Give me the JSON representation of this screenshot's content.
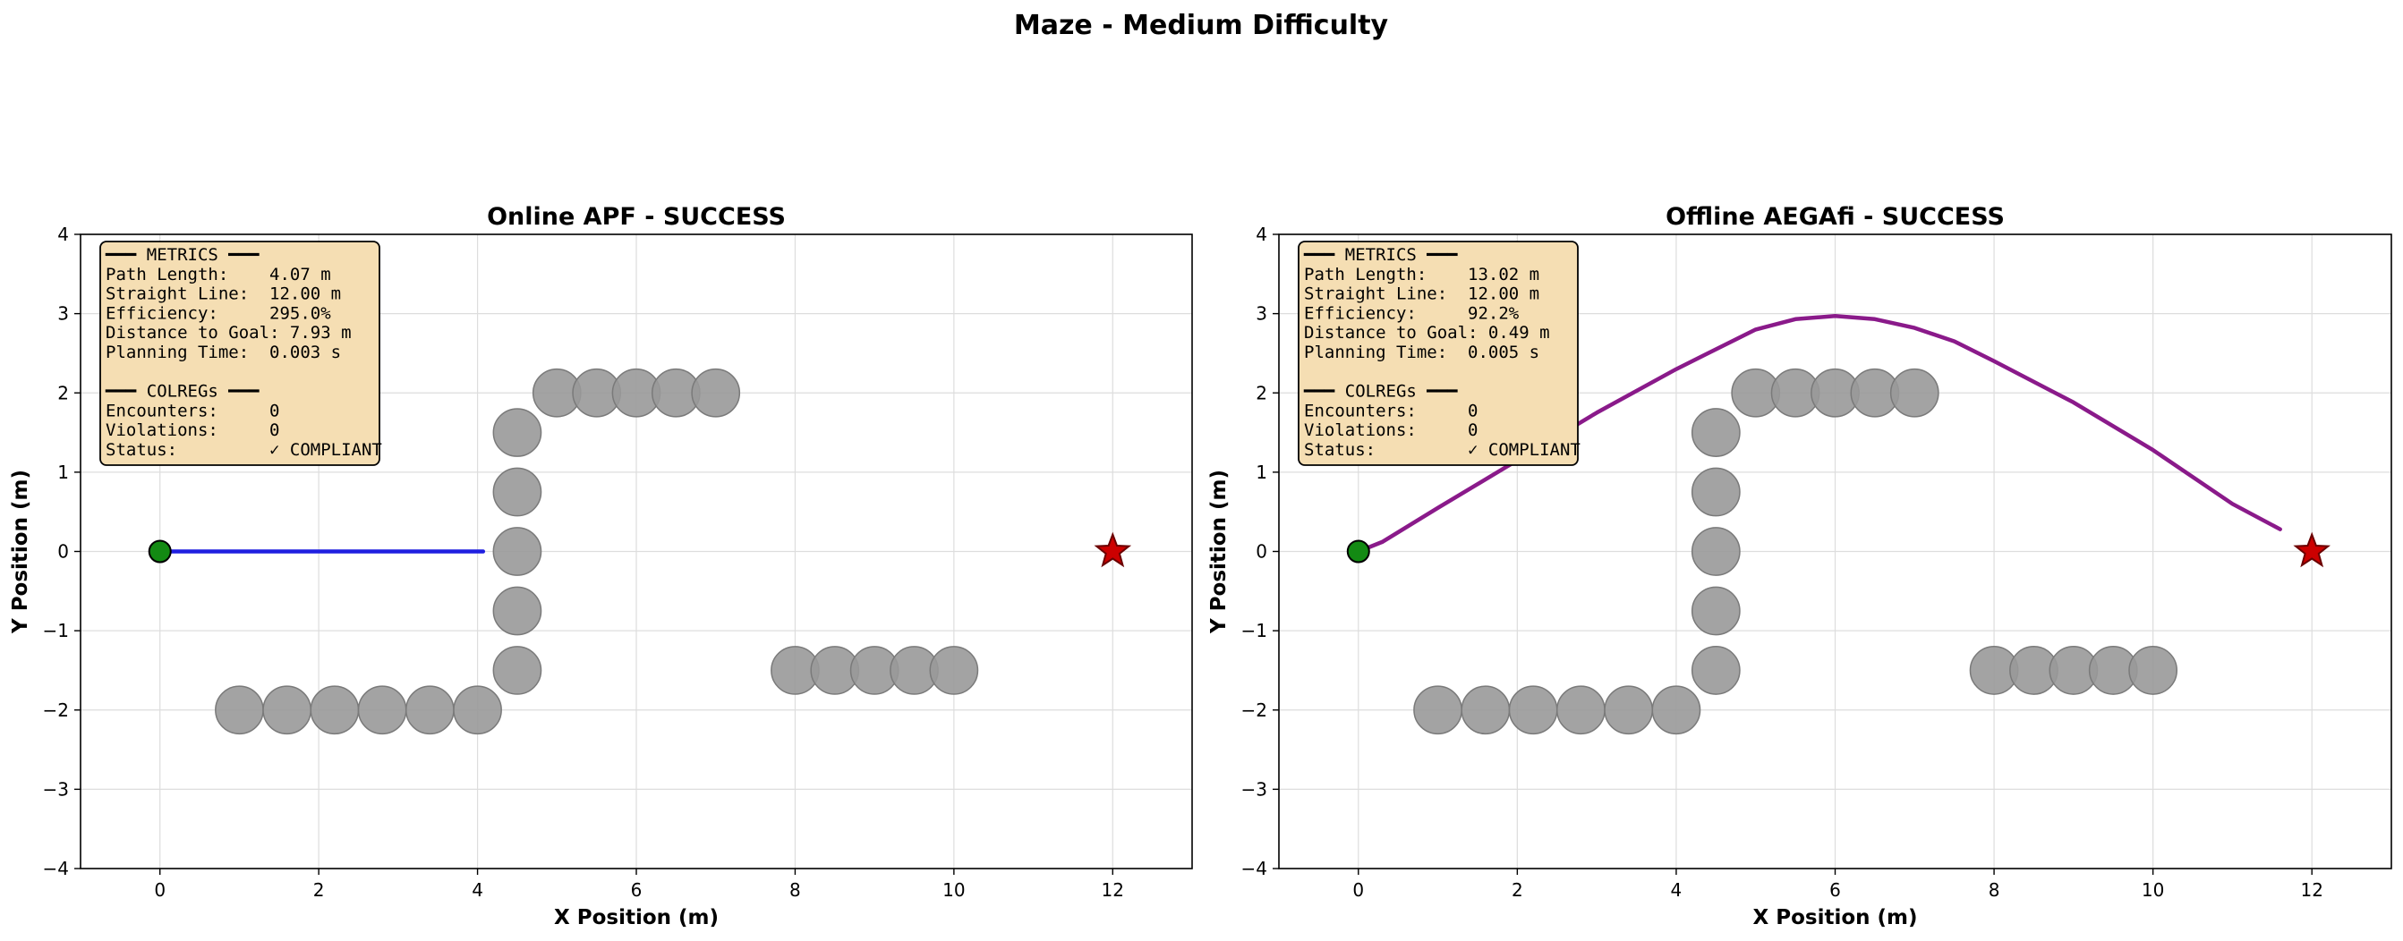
{
  "suptitle": "Maze - Medium Difficulty",
  "colors": {
    "apf_path": "#1f1fe0",
    "aegafi_path": "#8a1a8a",
    "obstacle": "#999999",
    "start": "#138a13",
    "goal": "#cc0000",
    "textbox": "#f5deb3"
  },
  "chart_data": [
    {
      "type": "scatter",
      "title": "Online APF - SUCCESS",
      "xlabel": "X Position (m)",
      "ylabel": "Y Position (m)",
      "xlim": [
        -1,
        13
      ],
      "ylim": [
        -4,
        4
      ],
      "xticks": [
        0,
        2,
        4,
        6,
        8,
        10,
        12
      ],
      "yticks": [
        -4,
        -3,
        -2,
        -1,
        0,
        1,
        2,
        3,
        4
      ],
      "grid": true,
      "obstacles": [
        {
          "x": 1.0,
          "y": -2.0
        },
        {
          "x": 1.6,
          "y": -2.0
        },
        {
          "x": 2.2,
          "y": -2.0
        },
        {
          "x": 2.8,
          "y": -2.0
        },
        {
          "x": 3.4,
          "y": -2.0
        },
        {
          "x": 4.0,
          "y": -2.0
        },
        {
          "x": 4.5,
          "y": -1.5
        },
        {
          "x": 4.5,
          "y": -0.75
        },
        {
          "x": 4.5,
          "y": 0.0
        },
        {
          "x": 4.5,
          "y": 0.75
        },
        {
          "x": 4.5,
          "y": 1.5
        },
        {
          "x": 5.0,
          "y": 2.0
        },
        {
          "x": 5.5,
          "y": 2.0
        },
        {
          "x": 6.0,
          "y": 2.0
        },
        {
          "x": 6.5,
          "y": 2.0
        },
        {
          "x": 7.0,
          "y": 2.0
        },
        {
          "x": 8.0,
          "y": -1.5
        },
        {
          "x": 8.5,
          "y": -1.5
        },
        {
          "x": 9.0,
          "y": -1.5
        },
        {
          "x": 9.5,
          "y": -1.5
        },
        {
          "x": 10.0,
          "y": -1.5
        }
      ],
      "obstacle_radius": 0.3,
      "start": {
        "x": 0,
        "y": 0
      },
      "goal": {
        "x": 12,
        "y": 0
      },
      "path": {
        "color": "#1f1fe0",
        "x": [
          0,
          1,
          2,
          3,
          4.07
        ],
        "y": [
          0,
          0,
          0,
          0,
          0
        ]
      },
      "metrics_lines": [
        "━━━ METRICS ━━━",
        "Path Length:    4.07 m",
        "Straight Line:  12.00 m",
        "Efficiency:     295.0%",
        "Distance to Goal: 7.93 m",
        "Planning Time:  0.003 s",
        "",
        "━━━ COLREGs ━━━",
        "Encounters:     0",
        "Violations:     0",
        "Status:         ✓ COMPLIANT"
      ]
    },
    {
      "type": "scatter",
      "title": "Offline AEGAfi - SUCCESS",
      "xlabel": "X Position (m)",
      "ylabel": "Y Position (m)",
      "xlim": [
        -1,
        13
      ],
      "ylim": [
        -4,
        4
      ],
      "xticks": [
        0,
        2,
        4,
        6,
        8,
        10,
        12
      ],
      "yticks": [
        -4,
        -3,
        -2,
        -1,
        0,
        1,
        2,
        3,
        4
      ],
      "grid": true,
      "obstacles": [
        {
          "x": 1.0,
          "y": -2.0
        },
        {
          "x": 1.6,
          "y": -2.0
        },
        {
          "x": 2.2,
          "y": -2.0
        },
        {
          "x": 2.8,
          "y": -2.0
        },
        {
          "x": 3.4,
          "y": -2.0
        },
        {
          "x": 4.0,
          "y": -2.0
        },
        {
          "x": 4.5,
          "y": -1.5
        },
        {
          "x": 4.5,
          "y": -0.75
        },
        {
          "x": 4.5,
          "y": 0.0
        },
        {
          "x": 4.5,
          "y": 0.75
        },
        {
          "x": 4.5,
          "y": 1.5
        },
        {
          "x": 5.0,
          "y": 2.0
        },
        {
          "x": 5.5,
          "y": 2.0
        },
        {
          "x": 6.0,
          "y": 2.0
        },
        {
          "x": 6.5,
          "y": 2.0
        },
        {
          "x": 7.0,
          "y": 2.0
        },
        {
          "x": 8.0,
          "y": -1.5
        },
        {
          "x": 8.5,
          "y": -1.5
        },
        {
          "x": 9.0,
          "y": -1.5
        },
        {
          "x": 9.5,
          "y": -1.5
        },
        {
          "x": 10.0,
          "y": -1.5
        }
      ],
      "obstacle_radius": 0.3,
      "start": {
        "x": 0,
        "y": 0
      },
      "goal": {
        "x": 12,
        "y": 0
      },
      "path": {
        "color": "#8a1a8a",
        "x": [
          0,
          0.3,
          1.0,
          2.0,
          3.0,
          4.0,
          4.5,
          5.0,
          5.5,
          6.0,
          6.5,
          7.0,
          7.5,
          8.0,
          9.0,
          10.0,
          11.0,
          11.6
        ],
        "y": [
          0,
          0.12,
          0.55,
          1.15,
          1.75,
          2.3,
          2.55,
          2.8,
          2.93,
          2.97,
          2.93,
          2.82,
          2.65,
          2.4,
          1.88,
          1.28,
          0.6,
          0.28
        ]
      },
      "metrics_lines": [
        "━━━ METRICS ━━━",
        "Path Length:    13.02 m",
        "Straight Line:  12.00 m",
        "Efficiency:     92.2%",
        "Distance to Goal: 0.49 m",
        "Planning Time:  0.005 s",
        "",
        "━━━ COLREGs ━━━",
        "Encounters:     0",
        "Violations:     0",
        "Status:         ✓ COMPLIANT"
      ]
    }
  ]
}
